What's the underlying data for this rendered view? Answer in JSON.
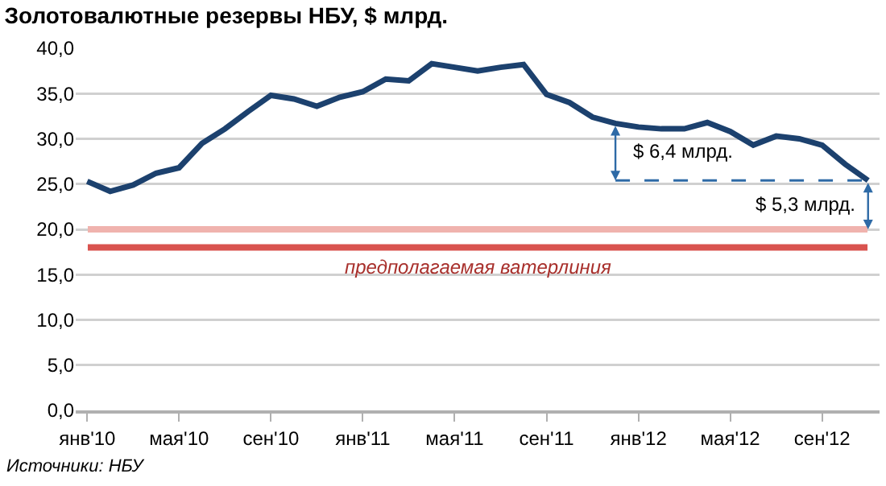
{
  "chart_data": {
    "type": "line",
    "title": "Золотовалютные резервы НБУ, $ млрд.",
    "categories": [
      "янв'10",
      null,
      null,
      null,
      "мая'10",
      null,
      null,
      null,
      "сен'10",
      null,
      null,
      null,
      "янв'11",
      null,
      null,
      null,
      "мая'11",
      null,
      null,
      null,
      "сен'11",
      null,
      null,
      null,
      "янв'12",
      null,
      null,
      null,
      "мая'12",
      null,
      null,
      null,
      "сен'12",
      null,
      null
    ],
    "series": [
      {
        "color": "#1c416e",
        "values": [
          25.3,
          24.2,
          24.9,
          26.2,
          26.8,
          29.5,
          31.1,
          33.0,
          34.8,
          34.4,
          33.6,
          34.6,
          35.2,
          36.6,
          36.4,
          38.3,
          37.9,
          37.5,
          37.9,
          38.2,
          34.9,
          34.0,
          32.4,
          31.7,
          31.3,
          31.1,
          31.1,
          31.8,
          30.8,
          29.3,
          30.3,
          30.0,
          29.3,
          27.2,
          25.4
        ]
      }
    ],
    "ylim": [
      0,
      40
    ],
    "yticks": [
      {
        "value": 0,
        "label": "0,0"
      },
      {
        "value": 5,
        "label": "5,0"
      },
      {
        "value": 10,
        "label": "10,0"
      },
      {
        "value": 15,
        "label": "15,0"
      },
      {
        "value": 20,
        "label": "20,0"
      },
      {
        "value": 25,
        "label": "25,0"
      },
      {
        "value": 30,
        "label": "30,0"
      },
      {
        "value": 35,
        "label": "35,0"
      },
      {
        "value": 40,
        "label": "40,0"
      }
    ],
    "grid": "y",
    "marker": "none",
    "line_style": "solid",
    "ref_lines": [
      {
        "axis": "y",
        "value": 20,
        "color": "#f0b3ae"
      },
      {
        "axis": "y",
        "value": 18,
        "color": "#d9534f",
        "label": "предполагаемая ватерлиния"
      }
    ],
    "annotations": [
      "$ 6,4 млрд.",
      "$ 5,3 млрд.",
      "Источники: НБУ"
    ]
  }
}
